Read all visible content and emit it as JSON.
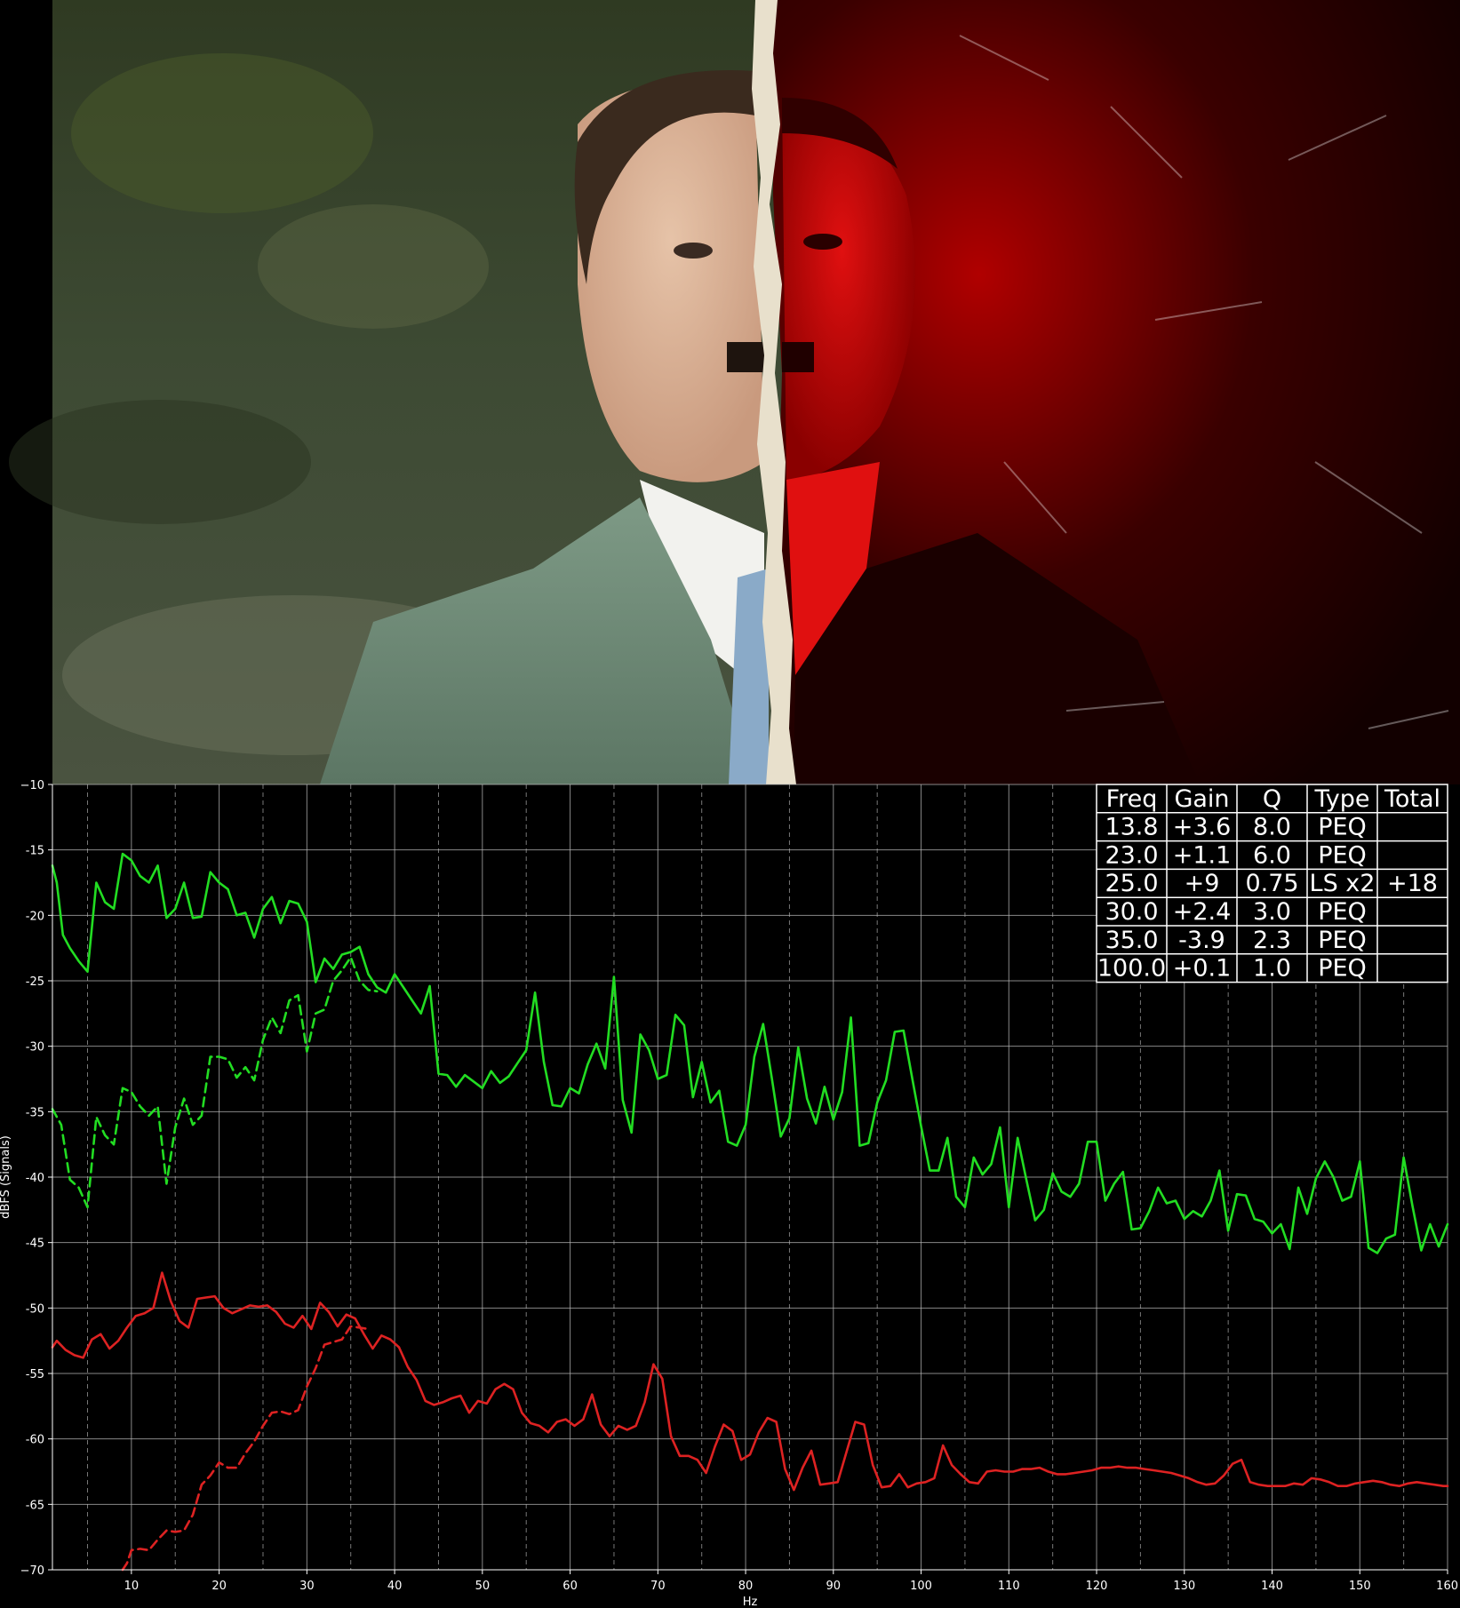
{
  "colors": {
    "background": "#000000",
    "grid": "#b4b4b4",
    "minor_grid": "#787878",
    "series_green": "#22dd22",
    "series_red": "#dd2222",
    "table_border": "#ffffff",
    "table_text": "#ffffff"
  },
  "photo": {
    "description_icon": "portrait-photo"
  },
  "chart_data": {
    "type": "line",
    "xlabel": "Hz",
    "ylabel": "dBFS (Signals)",
    "xlim": [
      1,
      160
    ],
    "ylim": [
      -70,
      -10
    ],
    "xticks": [
      10,
      20,
      30,
      40,
      50,
      60,
      70,
      80,
      90,
      100,
      110,
      120,
      130,
      140,
      150,
      160
    ],
    "yticks": [
      -10,
      -15,
      -20,
      -25,
      -30,
      -35,
      -40,
      -45,
      -50,
      -55,
      -60,
      -65,
      -70
    ],
    "ytick_labels": [
      "−10",
      "-15",
      "-20",
      "-25",
      "-30",
      "-35",
      "-40",
      "-45",
      "-50",
      "-55",
      "-60",
      "-65",
      "−70"
    ],
    "grid": true,
    "series": [
      {
        "style": "solid",
        "color": "#22dd22",
        "x": [
          1,
          1.5,
          2.2,
          3,
          4,
          5,
          6,
          7,
          8,
          9,
          10,
          11,
          12,
          13,
          14,
          15,
          16,
          17,
          18,
          19,
          20,
          21,
          22,
          23,
          24,
          25,
          26,
          27,
          28,
          29,
          30,
          31,
          32,
          33,
          34,
          35,
          36,
          37,
          38,
          39,
          40,
          41,
          42,
          43,
          44,
          45,
          46,
          47,
          48,
          49,
          50,
          51,
          52,
          53,
          54,
          55,
          56,
          57,
          58,
          59,
          60,
          61,
          62,
          63,
          64,
          65,
          66,
          67,
          68,
          69,
          70,
          71,
          72,
          73,
          74,
          75,
          76,
          77,
          78,
          79,
          80,
          81,
          82,
          83,
          84,
          85,
          86,
          87,
          88,
          89,
          90,
          91,
          92,
          93,
          94,
          95,
          96,
          97,
          98,
          99,
          100,
          101,
          102,
          103,
          104,
          105,
          106,
          107,
          108,
          109,
          110,
          111,
          112,
          113,
          114,
          115,
          116,
          117,
          118,
          119,
          120,
          121,
          122,
          123,
          124,
          125,
          126,
          127,
          128,
          129,
          130,
          131,
          132,
          133,
          134,
          135,
          136,
          137,
          138,
          139,
          140,
          141,
          142,
          143,
          144,
          145,
          146,
          147,
          148,
          149,
          150,
          151,
          152,
          153,
          154,
          155,
          156,
          157,
          158,
          159,
          160
        ],
        "y": [
          -16.2,
          -17.5,
          -21.5,
          -22.5,
          -23.5,
          -24.3,
          -17.5,
          -19,
          -19.5,
          -15.3,
          -15.8,
          -17,
          -17.5,
          -16.2,
          -20.2,
          -19.5,
          -17.5,
          -20.2,
          -20.1,
          -16.7,
          -17.5,
          -18,
          -20,
          -19.8,
          -21.7,
          -19.5,
          -18.6,
          -20.6,
          -18.9,
          -19.1,
          -20.5,
          -25.1,
          -23.3,
          -24.1,
          -23,
          -22.8,
          -22.4,
          -24.5,
          -25.5,
          -25.9,
          -24.5,
          -25.5,
          -26.5,
          -27.5,
          -25.4,
          -32.1,
          -32.2,
          -33.1,
          -32.2,
          -32.7,
          -33.2,
          -31.9,
          -32.8,
          -32.3,
          -31.3,
          -30.3,
          -25.9,
          -31.2,
          -34.5,
          -34.6,
          -33.2,
          -33.6,
          -31.4,
          -29.8,
          -31.7,
          -24.7,
          -34.1,
          -36.6,
          -29.1,
          -30.3,
          -32.5,
          -32.2,
          -27.6,
          -28.4,
          -33.9,
          -31.2,
          -34.3,
          -33.4,
          -37.3,
          -37.6,
          -36,
          -30.8,
          -28.3,
          -32.5,
          -36.9,
          -35.5,
          -30.1,
          -34,
          -35.9,
          -33.1,
          -35.6,
          -33.5,
          -27.8,
          -37.6,
          -37.4,
          -34.3,
          -32.6,
          -28.9,
          -28.8,
          -32.5,
          -36.1,
          -39.5,
          -39.5,
          -37,
          -41.5,
          -42.3,
          -38.5,
          -39.8,
          -39,
          -36.2,
          -42.3,
          -37,
          -40.2,
          -43.3,
          -42.5,
          -39.7,
          -41.1,
          -41.5,
          -40.5,
          -37.3,
          -37.3,
          -41.8,
          -40.5,
          -39.6,
          -44,
          -43.9,
          -42.6,
          -40.8,
          -42,
          -41.8,
          -43.2,
          -42.6,
          -43,
          -41.8,
          -39.5,
          -44.1,
          -41.3,
          -41.4,
          -43.2,
          -43.4,
          -44.3,
          -43.6,
          -45.5,
          -40.8,
          -42.8,
          -40.1,
          -38.8,
          -40,
          -41.8,
          -41.5,
          -38.8,
          -45.4,
          -45.8,
          -44.7,
          -44.4,
          -38.5,
          -42.2,
          -45.6,
          -43.6,
          -45.3,
          -43.6
        ]
      },
      {
        "style": "dashed",
        "color": "#22dd22",
        "x": [
          1,
          2,
          3,
          4,
          5,
          6,
          7,
          8,
          9,
          10,
          11,
          12,
          13,
          14,
          15,
          16,
          17,
          18,
          19,
          20,
          21,
          22,
          23,
          24,
          25,
          26,
          27,
          28,
          29,
          30,
          31,
          32,
          33,
          34,
          35,
          36,
          37,
          38
        ],
        "y": [
          -34.8,
          -36,
          -40.2,
          -40.8,
          -42.3,
          -35.4,
          -36.8,
          -37.5,
          -33.2,
          -33.5,
          -34.6,
          -35.3,
          -34.6,
          -40.5,
          -36.2,
          -34,
          -36,
          -35.3,
          -30.8,
          -30.8,
          -31,
          -32.4,
          -31.6,
          -32.6,
          -29.5,
          -27.8,
          -29,
          -26.5,
          -26.1,
          -30.4,
          -27.5,
          -27.2,
          -25,
          -24.2,
          -23.2,
          -25,
          -25.7,
          -25.8
        ]
      },
      {
        "style": "solid",
        "color": "#dd2222",
        "x": [
          1,
          1.5,
          2.5,
          3.5,
          4.5,
          5.5,
          6.5,
          7.5,
          8.5,
          9.5,
          10.5,
          11.5,
          12.5,
          13.5,
          14.5,
          15.5,
          16.5,
          17.5,
          18.5,
          19.5,
          20.5,
          21.5,
          22.5,
          23.5,
          24.5,
          25.5,
          26.5,
          27.5,
          28.5,
          29.5,
          30.5,
          31.5,
          32.5,
          33.5,
          34.5,
          35.5,
          36.5,
          37.5,
          38.5,
          39.5,
          40.5,
          41.5,
          42.5,
          43.5,
          44.5,
          45.5,
          46.5,
          47.5,
          48.5,
          49.5,
          50.5,
          51.5,
          52.5,
          53.5,
          54.5,
          55.5,
          56.5,
          57.5,
          58.5,
          59.5,
          60.5,
          61.5,
          62.5,
          63.5,
          64.5,
          65.5,
          66.5,
          67.5,
          68.5,
          69.5,
          70.5,
          71.5,
          72.5,
          73.5,
          74.5,
          75.5,
          76.5,
          77.5,
          78.5,
          79.5,
          80.5,
          81.5,
          82.5,
          83.5,
          84.5,
          85.5,
          86.5,
          87.5,
          88.5,
          89.5,
          90.5,
          91.5,
          92.5,
          93.5,
          94.5,
          95.5,
          96.5,
          97.5,
          98.5,
          99.5,
          100.5,
          101.5,
          102.5,
          103.5,
          104.5,
          105.5,
          106.5,
          107.5,
          108.5,
          109.5,
          110.5,
          111.5,
          112.5,
          113.5,
          114.5,
          115.5,
          116.5,
          117.5,
          118.5,
          119.5,
          120.5,
          121.5,
          122.5,
          123.5,
          124.5,
          125.5,
          126.5,
          127.5,
          128.5,
          129.5,
          130.5,
          131.5,
          132.5,
          133.5,
          134.5,
          135.5,
          136.5,
          137.5,
          138.5,
          139.5,
          140.5,
          141.5,
          142.5,
          143.5,
          144.5,
          145.5,
          146.5,
          147.5,
          148.5,
          149.5,
          150.5,
          151.5,
          152.5,
          153.5,
          154.5,
          155.5,
          156.5,
          157.5,
          158.5,
          159.5,
          160
        ],
        "y": [
          -53,
          -52.5,
          -53.2,
          -53.6,
          -53.8,
          -52.4,
          -52,
          -53.1,
          -52.5,
          -51.5,
          -50.6,
          -50.4,
          -50,
          -47.3,
          -49.5,
          -51,
          -51.5,
          -49.3,
          -49.2,
          -49.1,
          -50,
          -50.4,
          -50.1,
          -49.8,
          -49.9,
          -49.8,
          -50.3,
          -51.2,
          -51.5,
          -50.6,
          -51.6,
          -49.6,
          -50.3,
          -51.4,
          -50.5,
          -50.8,
          -52,
          -53.1,
          -52.1,
          -52.4,
          -53,
          -54.5,
          -55.5,
          -57.1,
          -57.4,
          -57.2,
          -56.9,
          -56.7,
          -58,
          -57.1,
          -57.3,
          -56.2,
          -55.8,
          -56.2,
          -58,
          -58.8,
          -59,
          -59.5,
          -58.7,
          -58.5,
          -59,
          -58.5,
          -56.6,
          -58.9,
          -59.8,
          -59,
          -59.3,
          -59,
          -57.2,
          -54.3,
          -55.4,
          -59.8,
          -61.3,
          -61.3,
          -61.6,
          -62.6,
          -60.6,
          -58.9,
          -59.4,
          -61.6,
          -61.2,
          -59.5,
          -58.4,
          -58.7,
          -62.3,
          -63.9,
          -62.2,
          -60.9,
          -63.5,
          -63.4,
          -63.3,
          -61,
          -58.7,
          -58.9,
          -62,
          -63.7,
          -63.6,
          -62.7,
          -63.7,
          -63.4,
          -63.3,
          -63,
          -60.5,
          -62,
          -62.7,
          -63.3,
          -63.4,
          -62.5,
          -62.4,
          -62.5,
          -62.5,
          -62.3,
          -62.3,
          -62.2,
          -62.5,
          -62.7,
          -62.7,
          -62.6,
          -62.5,
          -62.4,
          -62.2,
          -62.2,
          -62.1,
          -62.2,
          -62.2,
          -62.3,
          -62.4,
          -62.5,
          -62.6,
          -62.8,
          -63,
          -63.3,
          -63.5,
          -63.4,
          -62.8,
          -61.9,
          -61.6,
          -63.3,
          -63.5,
          -63.6,
          -63.6,
          -63.6,
          -63.4,
          -63.5,
          -63,
          -63.1,
          -63.3,
          -63.6,
          -63.6,
          -63.4,
          -63.3,
          -63.2,
          -63.3,
          -63.5,
          -63.6,
          -63.4,
          -63.3,
          -63.4,
          -63.5,
          -63.6,
          -63.6
        ]
      },
      {
        "style": "dashed",
        "color": "#dd2222",
        "x": [
          9,
          9.5,
          10,
          11,
          12,
          13,
          14,
          15,
          16,
          17,
          18,
          19,
          20,
          21,
          22,
          23,
          24,
          25,
          26,
          27,
          28,
          29,
          30,
          31,
          32,
          33,
          34,
          35,
          36,
          37
        ],
        "y": [
          -70,
          -69.5,
          -68.5,
          -68.4,
          -68.5,
          -67.7,
          -67,
          -67.1,
          -67,
          -65.8,
          -63.5,
          -62.8,
          -61.8,
          -62.2,
          -62.2,
          -61.1,
          -60.2,
          -59,
          -58,
          -57.9,
          -58.1,
          -57.8,
          -56,
          -54.6,
          -52.8,
          -52.6,
          -52.4,
          -51.4,
          -51.5,
          -51.6
        ]
      }
    ],
    "table": {
      "headers": [
        "Freq",
        "Gain",
        "Q",
        "Type",
        "Total"
      ],
      "rows": [
        [
          "13.8",
          "+3.6",
          "8.0",
          "PEQ",
          ""
        ],
        [
          "23.0",
          "+1.1",
          "6.0",
          "PEQ",
          ""
        ],
        [
          "25.0",
          "+9",
          "0.75",
          "LS x2",
          "+18"
        ],
        [
          "30.0",
          "+2.4",
          "3.0",
          "PEQ",
          ""
        ],
        [
          "35.0",
          "-3.9",
          "2.3",
          "PEQ",
          ""
        ],
        [
          "100.0",
          "+0.1",
          "1.0",
          "PEQ",
          ""
        ]
      ]
    }
  }
}
